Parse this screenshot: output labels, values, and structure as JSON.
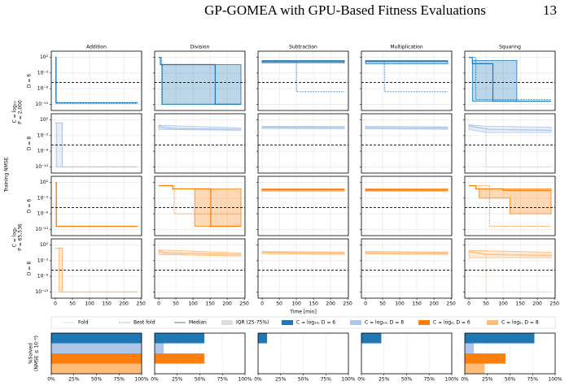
{
  "header": {
    "title": "GP-GOMEA with GPU-Based Fitness Evaluations",
    "page": "13"
  },
  "chart_data": [
    {
      "type": "line-grid",
      "columns": [
        "Addition",
        "Division",
        "Subtraction",
        "Multiplication",
        "Squaring"
      ],
      "row_labels": [
        "D = 6",
        "D = 8",
        "D = 6",
        "D = 8"
      ],
      "group_labels": [
        [
          "C = log₁₀",
          "P = 2,000"
        ],
        [
          "C = log₂",
          "P = 65,536"
        ]
      ],
      "ylabel": "Training NMSE",
      "xlabel": "Time [min]",
      "log_y": true,
      "grid": true,
      "xlim": [
        -12,
        252
      ],
      "xticks": [
        0,
        50,
        100,
        150,
        200,
        250
      ],
      "ylim": [
        1e-15,
        10000
      ],
      "yticks": [
        {
          "value": 100,
          "label": "10²"
        },
        {
          "value": 0.001,
          "label": "10⁻³"
        },
        {
          "value": 1e-08,
          "label": "10⁻⁸"
        },
        {
          "value": 1e-13,
          "label": "10⁻¹³"
        }
      ],
      "threshold": 1e-06,
      "legend": [
        "Fold",
        "Best fold",
        "Median",
        "IQR (25-75%)"
      ],
      "groups": [
        {
          "name": "C = log₁₀, D = 6",
          "color": "#1f77b4"
        },
        {
          "name": "C = log₁₀, D = 8",
          "color": "#aec7e8"
        },
        {
          "name": "C = log₂, D = 6",
          "color": "#ff7f0e"
        },
        {
          "name": "C = log₂, D = 8",
          "color": "#ffbb78"
        }
      ],
      "panels": [
        [
          {
            "median": {
              "x": [
                0,
                2,
                2,
                240
              ],
              "values": [
                100,
                100,
                3e-13,
                3e-13
              ]
            },
            "best": {
              "x": [
                0,
                1,
                1,
                240
              ],
              "values": [
                100,
                100,
                2e-13,
                2e-13
              ]
            }
          },
          {
            "median": {
              "x": [
                0,
                5,
                5,
                165,
                165,
                240
              ],
              "values": [
                100,
                100,
                0.5,
                0.5,
                1e-13,
                1e-13
              ]
            },
            "best": {
              "x": [
                0,
                8,
                8,
                240
              ],
              "values": [
                100,
                100,
                1e-13,
                1e-13
              ]
            },
            "iqr": {
              "x": [
                10,
                240
              ],
              "low": [
                1e-13,
                1e-13
              ],
              "high": [
                0.5,
                0.5
              ]
            }
          },
          {
            "median": {
              "x": [
                0,
                240
              ],
              "values": [
                5,
                5
              ]
            },
            "best": {
              "x": [
                0,
                100,
                100,
                240
              ],
              "values": [
                5,
                5,
                1e-09,
                1e-09
              ]
            },
            "iqr": {
              "x": [
                0,
                240
              ],
              "low": [
                2,
                2
              ],
              "high": [
                10,
                10
              ]
            }
          },
          {
            "median": {
              "x": [
                0,
                240
              ],
              "values": [
                5,
                5
              ]
            },
            "best": {
              "x": [
                0,
                55,
                55,
                240
              ],
              "values": [
                5,
                5,
                1e-09,
                1e-09
              ]
            },
            "iqr": {
              "x": [
                0,
                240
              ],
              "low": [
                1,
                1
              ],
              "high": [
                10,
                10
              ]
            }
          },
          {
            "median": {
              "x": [
                0,
                10,
                10,
                70,
                70,
                240
              ],
              "values": [
                100,
                100,
                1,
                1,
                1e-12,
                1e-12
              ]
            },
            "best": {
              "x": [
                0,
                20,
                20,
                240
              ],
              "values": [
                100,
                100,
                3e-12,
                3e-12
              ]
            },
            "iqr": {
              "x": [
                10,
                140
              ],
              "low": [
                1e-12,
                1e-12
              ],
              "high": [
                10,
                10
              ]
            }
          }
        ],
        [
          {
            "median": {
              "x": [
                0,
                20,
                20,
                240
              ],
              "values": [
                10,
                10,
                1e-13,
                1e-13
              ]
            },
            "best": {
              "x": [
                0,
                3,
                3,
                240
              ],
              "values": [
                10,
                10,
                1e-13,
                1e-13
              ]
            },
            "iqr": {
              "x": [
                3,
                20
              ],
              "low": [
                1e-13,
                1e-13
              ],
              "high": [
                10,
                10
              ]
            }
          },
          {
            "median": {
              "x": [
                0,
                10,
                50,
                240
              ],
              "values": [
                2,
                0.5,
                0.2,
                0.1
              ]
            },
            "best": {
              "x": [
                0,
                10,
                60,
                240
              ],
              "values": [
                1,
                0.2,
                0.08,
                0.05
              ]
            },
            "iqr": {
              "x": [
                0,
                240
              ],
              "low": [
                0.1,
                0.05
              ],
              "high": [
                2,
                0.3
              ]
            }
          },
          {
            "median": {
              "x": [
                0,
                240
              ],
              "values": [
                0.5,
                0.4
              ]
            },
            "best": {
              "x": [
                0,
                240
              ],
              "values": [
                0.3,
                0.2
              ]
            },
            "iqr": {
              "x": [
                0,
                240
              ],
              "low": [
                0.2,
                0.15
              ],
              "high": [
                1,
                0.8
              ]
            }
          },
          {
            "median": {
              "x": [
                0,
                240
              ],
              "values": [
                0.4,
                0.3
              ]
            },
            "best": {
              "x": [
                0,
                240
              ],
              "values": [
                0.2,
                0.15
              ]
            },
            "iqr": {
              "x": [
                0,
                240
              ],
              "low": [
                0.15,
                0.1
              ],
              "high": [
                1,
                0.6
              ]
            }
          },
          {
            "median": {
              "x": [
                0,
                20,
                60,
                240
              ],
              "values": [
                2,
                0.5,
                0.1,
                0.05
              ]
            },
            "best": {
              "x": [
                0,
                50,
                50,
                240
              ],
              "values": [
                1,
                0.2,
                1e-13,
                1e-13
              ]
            },
            "iqr": {
              "x": [
                0,
                50,
                240
              ],
              "low": [
                0.1,
                0.01,
                0.01
              ],
              "high": [
                3,
                1,
                0.5
              ]
            }
          }
        ],
        [
          {
            "median": {
              "x": [
                0,
                3,
                3,
                240
              ],
              "values": [
                100,
                100,
                1e-12,
                1e-12
              ]
            },
            "best": {
              "x": [
                0,
                2,
                2,
                240
              ],
              "values": [
                100,
                100,
                1e-12,
                1e-12
              ]
            }
          },
          {
            "median": {
              "x": [
                0,
                40,
                40,
                152,
                152,
                240
              ],
              "values": [
                10,
                10,
                1,
                1,
                1e-12,
                1e-12
              ]
            },
            "best": {
              "x": [
                0,
                45,
                45,
                240
              ],
              "values": [
                10,
                10,
                1e-08,
                1e-08
              ]
            },
            "iqr": {
              "x": [
                105,
                240
              ],
              "low": [
                1e-12,
                1e-12
              ],
              "high": [
                1,
                1
              ]
            }
          },
          {
            "median": {
              "x": [
                0,
                240
              ],
              "values": [
                0.5,
                0.5
              ]
            },
            "best": {
              "x": [
                0,
                240
              ],
              "values": [
                0.2,
                0.2
              ]
            },
            "iqr": {
              "x": [
                0,
                240
              ],
              "low": [
                0.2,
                0.2
              ],
              "high": [
                1,
                1
              ]
            }
          },
          {
            "median": {
              "x": [
                0,
                240
              ],
              "values": [
                0.5,
                0.4
              ]
            },
            "best": {
              "x": [
                0,
                240
              ],
              "values": [
                0.3,
                0.2
              ]
            },
            "iqr": {
              "x": [
                0,
                240
              ],
              "low": [
                0.2,
                0.2
              ],
              "high": [
                1,
                1
              ]
            }
          },
          {
            "median": {
              "x": [
                0,
                20,
                20,
                100,
                100,
                240
              ],
              "values": [
                10,
                10,
                1,
                1,
                0.3,
                0.3
              ]
            },
            "best": {
              "x": [
                0,
                60,
                60,
                240
              ],
              "values": [
                10,
                10,
                1e-12,
                1e-12
              ]
            },
            "iqr": {
              "x": [
                30,
                120,
                120,
                240
              ],
              "low": [
                0.001,
                0.001,
                1e-08,
                1e-08
              ],
              "high": [
                1,
                1,
                1,
                1
              ]
            }
          }
        ],
        [
          {
            "median": {
              "x": [
                0,
                20,
                20,
                240
              ],
              "values": [
                10,
                10,
                1e-13,
                1e-13
              ]
            },
            "best": {
              "x": [
                0,
                10,
                10,
                240
              ],
              "values": [
                10,
                10,
                1e-13,
                1e-13
              ]
            },
            "iqr": {
              "x": [
                10,
                20
              ],
              "low": [
                1e-13,
                1e-13
              ],
              "high": [
                10,
                10
              ]
            }
          },
          {
            "median": {
              "x": [
                0,
                20,
                240
              ],
              "values": [
                2,
                0.3,
                0.1
              ]
            },
            "best": {
              "x": [
                0,
                20,
                240
              ],
              "values": [
                1,
                0.1,
                0.03
              ]
            },
            "iqr": {
              "x": [
                0,
                240
              ],
              "low": [
                0.1,
                0.03
              ],
              "high": [
                3,
                0.3
              ]
            }
          },
          {
            "median": {
              "x": [
                0,
                240
              ],
              "values": [
                0.5,
                0.3
              ]
            },
            "best": {
              "x": [
                0,
                240
              ],
              "values": [
                0.2,
                0.15
              ]
            },
            "iqr": {
              "x": [
                0,
                240
              ],
              "low": [
                0.2,
                0.1
              ],
              "high": [
                1,
                0.6
              ]
            }
          },
          {
            "median": {
              "x": [
                0,
                240
              ],
              "values": [
                0.4,
                0.3
              ]
            },
            "best": {
              "x": [
                0,
                240
              ],
              "values": [
                0.2,
                0.15
              ]
            },
            "iqr": {
              "x": [
                0,
                240
              ],
              "low": [
                0.15,
                0.1
              ],
              "high": [
                1,
                0.6
              ]
            }
          },
          {
            "median": {
              "x": [
                0,
                50,
                240
              ],
              "values": [
                1,
                0.1,
                0.05
              ]
            },
            "best": {
              "x": [
                0,
                50,
                50,
                240
              ],
              "values": [
                1,
                0.1,
                1e-13,
                1e-13
              ]
            },
            "iqr": {
              "x": [
                0,
                240
              ],
              "low": [
                0.01,
                0.01
              ],
              "high": [
                2,
                0.5
              ]
            }
          }
        ]
      ]
    },
    {
      "type": "barh",
      "ylabel": [
        "%Solved",
        "(NMSE ≤ 10⁻⁶)"
      ],
      "xlim": [
        0,
        100
      ],
      "xticks": [
        {
          "value": 0,
          "label": "0%"
        },
        {
          "value": 25,
          "label": "25%"
        },
        {
          "value": 50,
          "label": "50%"
        },
        {
          "value": 75,
          "label": "75%"
        },
        {
          "value": 100,
          "label": "100%"
        }
      ],
      "values": [
        [
          100,
          100,
          100,
          100
        ],
        [
          55,
          10,
          55,
          0
        ],
        [
          10,
          0,
          0,
          0
        ],
        [
          22,
          0,
          0,
          0
        ],
        [
          77,
          10,
          45,
          22
        ]
      ]
    }
  ]
}
